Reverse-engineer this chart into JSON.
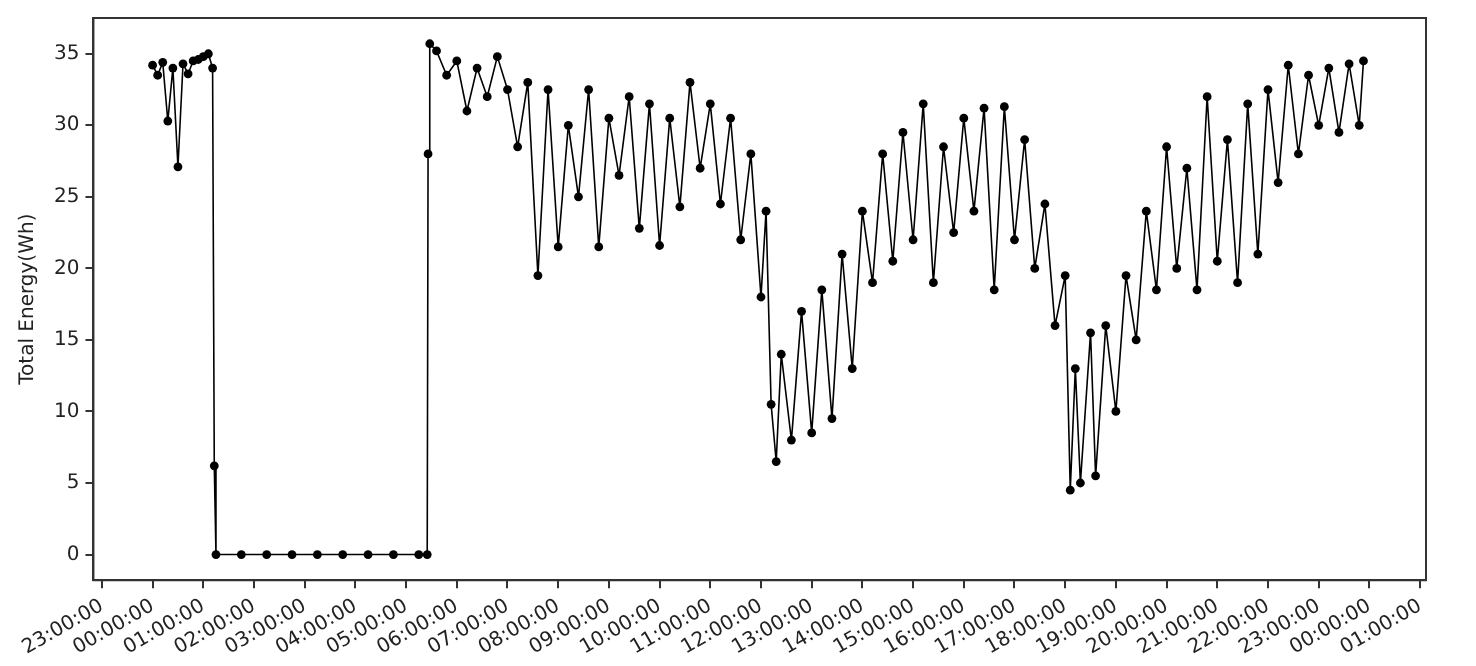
{
  "chart_data": {
    "type": "line",
    "ylabel": "Total Energy(Wh)",
    "marker": "circle",
    "line_style": "solid",
    "grid": false,
    "legend": false,
    "xlim": [
      "2000-01-01T22:50",
      "2000-01-03T01:07"
    ],
    "ylim": [
      -1.8,
      37.5
    ],
    "yticks": [
      0,
      5,
      10,
      15,
      20,
      25,
      30,
      35
    ],
    "xticks": [
      {
        "value": "2000-01-01T23:00",
        "label": "23:00:00"
      },
      {
        "value": "2000-01-02T00:00",
        "label": "00:00:00"
      },
      {
        "value": "2000-01-02T01:00",
        "label": "01:00:00"
      },
      {
        "value": "2000-01-02T02:00",
        "label": "02:00:00"
      },
      {
        "value": "2000-01-02T03:00",
        "label": "03:00:00"
      },
      {
        "value": "2000-01-02T04:00",
        "label": "04:00:00"
      },
      {
        "value": "2000-01-02T05:00",
        "label": "05:00:00"
      },
      {
        "value": "2000-01-02T06:00",
        "label": "06:00:00"
      },
      {
        "value": "2000-01-02T07:00",
        "label": "07:00:00"
      },
      {
        "value": "2000-01-02T08:00",
        "label": "08:00:00"
      },
      {
        "value": "2000-01-02T09:00",
        "label": "09:00:00"
      },
      {
        "value": "2000-01-02T10:00",
        "label": "10:00:00"
      },
      {
        "value": "2000-01-02T11:00",
        "label": "11:00:00"
      },
      {
        "value": "2000-01-02T12:00",
        "label": "12:00:00"
      },
      {
        "value": "2000-01-02T13:00",
        "label": "13:00:00"
      },
      {
        "value": "2000-01-02T14:00",
        "label": "14:00:00"
      },
      {
        "value": "2000-01-02T15:00",
        "label": "15:00:00"
      },
      {
        "value": "2000-01-02T16:00",
        "label": "16:00:00"
      },
      {
        "value": "2000-01-02T17:00",
        "label": "17:00:00"
      },
      {
        "value": "2000-01-02T18:00",
        "label": "18:00:00"
      },
      {
        "value": "2000-01-02T19:00",
        "label": "19:00:00"
      },
      {
        "value": "2000-01-02T20:00",
        "label": "20:00:00"
      },
      {
        "value": "2000-01-02T21:00",
        "label": "21:00:00"
      },
      {
        "value": "2000-01-02T22:00",
        "label": "22:00:00"
      },
      {
        "value": "2000-01-02T23:00",
        "label": "23:00:00"
      },
      {
        "value": "2000-01-03T00:00",
        "label": "00:00:00"
      },
      {
        "value": "2000-01-03T01:00",
        "label": "01:00:00"
      }
    ],
    "series": [
      {
        "color": "#000000",
        "x": [
          "2000-01-02T00:00",
          "2000-01-02T00:06",
          "2000-01-02T00:12",
          "2000-01-02T00:18",
          "2000-01-02T00:24",
          "2000-01-02T00:30",
          "2000-01-02T00:36",
          "2000-01-02T00:42",
          "2000-01-02T00:48",
          "2000-01-02T00:54",
          "2000-01-02T01:00",
          "2000-01-02T01:06",
          "2000-01-02T01:11",
          "2000-01-02T01:13",
          "2000-01-02T01:15",
          "2000-01-02T01:45",
          "2000-01-02T02:15",
          "2000-01-02T02:45",
          "2000-01-02T03:15",
          "2000-01-02T03:45",
          "2000-01-02T04:15",
          "2000-01-02T04:45",
          "2000-01-02T05:15",
          "2000-01-02T05:25",
          "2000-01-02T05:26",
          "2000-01-02T05:28",
          "2000-01-02T05:36",
          "2000-01-02T05:48",
          "2000-01-02T06:00",
          "2000-01-02T06:12",
          "2000-01-02T06:24",
          "2000-01-02T06:36",
          "2000-01-02T06:48",
          "2000-01-02T07:00",
          "2000-01-02T07:12",
          "2000-01-02T07:24",
          "2000-01-02T07:36",
          "2000-01-02T07:48",
          "2000-01-02T08:00",
          "2000-01-02T08:12",
          "2000-01-02T08:24",
          "2000-01-02T08:36",
          "2000-01-02T08:48",
          "2000-01-02T09:00",
          "2000-01-02T09:12",
          "2000-01-02T09:24",
          "2000-01-02T09:36",
          "2000-01-02T09:48",
          "2000-01-02T10:00",
          "2000-01-02T10:12",
          "2000-01-02T10:24",
          "2000-01-02T10:36",
          "2000-01-02T10:48",
          "2000-01-02T11:00",
          "2000-01-02T11:12",
          "2000-01-02T11:24",
          "2000-01-02T11:36",
          "2000-01-02T11:48",
          "2000-01-02T12:00",
          "2000-01-02T12:06",
          "2000-01-02T12:12",
          "2000-01-02T12:18",
          "2000-01-02T12:24",
          "2000-01-02T12:36",
          "2000-01-02T12:48",
          "2000-01-02T13:00",
          "2000-01-02T13:12",
          "2000-01-02T13:24",
          "2000-01-02T13:36",
          "2000-01-02T13:48",
          "2000-01-02T14:00",
          "2000-01-02T14:12",
          "2000-01-02T14:24",
          "2000-01-02T14:36",
          "2000-01-02T14:48",
          "2000-01-02T15:00",
          "2000-01-02T15:12",
          "2000-01-02T15:24",
          "2000-01-02T15:36",
          "2000-01-02T15:48",
          "2000-01-02T16:00",
          "2000-01-02T16:12",
          "2000-01-02T16:24",
          "2000-01-02T16:36",
          "2000-01-02T16:48",
          "2000-01-02T17:00",
          "2000-01-02T17:12",
          "2000-01-02T17:24",
          "2000-01-02T17:36",
          "2000-01-02T17:48",
          "2000-01-02T18:00",
          "2000-01-02T18:06",
          "2000-01-02T18:12",
          "2000-01-02T18:18",
          "2000-01-02T18:30",
          "2000-01-02T18:36",
          "2000-01-02T18:48",
          "2000-01-02T19:00",
          "2000-01-02T19:12",
          "2000-01-02T19:24",
          "2000-01-02T19:36",
          "2000-01-02T19:48",
          "2000-01-02T20:00",
          "2000-01-02T20:12",
          "2000-01-02T20:24",
          "2000-01-02T20:36",
          "2000-01-02T20:48",
          "2000-01-02T21:00",
          "2000-01-02T21:12",
          "2000-01-02T21:24",
          "2000-01-02T21:36",
          "2000-01-02T21:48",
          "2000-01-02T22:00",
          "2000-01-02T22:12",
          "2000-01-02T22:24",
          "2000-01-02T22:36",
          "2000-01-02T22:48",
          "2000-01-02T23:00",
          "2000-01-02T23:12",
          "2000-01-02T23:24",
          "2000-01-02T23:36",
          "2000-01-02T23:48",
          "2000-01-02T23:53"
        ],
        "values": [
          34.2,
          33.5,
          34.4,
          30.3,
          34.0,
          27.1,
          34.3,
          33.6,
          34.5,
          34.6,
          34.8,
          35.0,
          34.0,
          6.2,
          0,
          0,
          0,
          0,
          0,
          0,
          0,
          0,
          0,
          0,
          28.0,
          35.7,
          35.2,
          33.5,
          34.5,
          31.0,
          34.0,
          32.0,
          34.8,
          32.5,
          28.5,
          33.0,
          19.5,
          32.5,
          21.5,
          30.0,
          25.0,
          32.5,
          21.5,
          30.5,
          26.5,
          32.0,
          22.8,
          31.5,
          21.6,
          30.5,
          24.3,
          33.0,
          27.0,
          31.5,
          24.5,
          30.5,
          22.0,
          28.0,
          18.0,
          24.0,
          10.5,
          6.5,
          14.0,
          8.0,
          17.0,
          8.5,
          18.5,
          9.5,
          21.0,
          13.0,
          24.0,
          19.0,
          28.0,
          20.5,
          29.5,
          22.0,
          31.5,
          19.0,
          28.5,
          22.5,
          30.5,
          24.0,
          31.2,
          18.5,
          31.3,
          22.0,
          29.0,
          20.0,
          24.5,
          16.0,
          19.5,
          4.5,
          13.0,
          5.0,
          15.5,
          5.5,
          16.0,
          10.0,
          19.5,
          15.0,
          24.0,
          18.5,
          28.5,
          20.0,
          27.0,
          18.5,
          32.0,
          20.5,
          29.0,
          19.0,
          31.5,
          21.0,
          32.5,
          26.0,
          34.2,
          28.0,
          33.5,
          30.0,
          34.0,
          29.5,
          34.3,
          30.0,
          34.5
        ]
      }
    ]
  }
}
